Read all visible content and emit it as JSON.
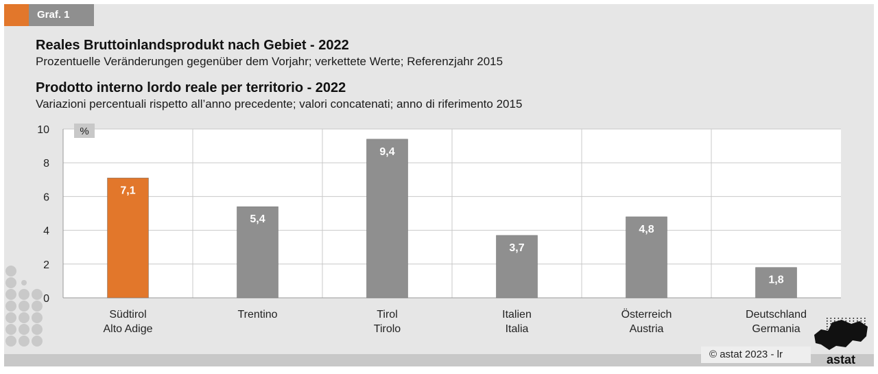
{
  "header": {
    "tab_label": "Graf. 1",
    "title_de": "Reales Bruttoinlandsprodukt nach Gebiet - 2022",
    "subtitle_de": "Prozentuelle Veränderungen gegenüber dem Vorjahr; verkettete Werte; Referenzjahr 2015",
    "title_it": "Prodotto interno lordo reale per territorio - 2022",
    "subtitle_it": "Variazioni percentuali rispetto all’anno precedente; valori concatenati; anno di riferimento 2015"
  },
  "footer": {
    "copyright": "© astat 2023 - lr",
    "logo_text": "astat"
  },
  "colors": {
    "highlight": "#e2772b",
    "bar": "#8f8f8f",
    "plot_bg": "#ffffff",
    "grid": "#c8c8c8"
  },
  "chart_data": {
    "type": "bar",
    "unit_label": "%",
    "categories": [
      [
        "Südtirol",
        "Alto Adige"
      ],
      [
        "Trentino"
      ],
      [
        "Tirol",
        "Tirolo"
      ],
      [
        "Italien",
        "Italia"
      ],
      [
        "Österreich",
        "Austria"
      ],
      [
        "Deutschland",
        "Germania"
      ]
    ],
    "values": [
      7.1,
      5.4,
      9.4,
      3.7,
      4.8,
      1.8
    ],
    "value_labels": [
      "7,1",
      "5,4",
      "9,4",
      "3,7",
      "4,8",
      "1,8"
    ],
    "highlight_index": 0,
    "ylim": [
      0,
      10
    ],
    "yticks": [
      0,
      2,
      4,
      6,
      8,
      10
    ],
    "grid": true
  }
}
